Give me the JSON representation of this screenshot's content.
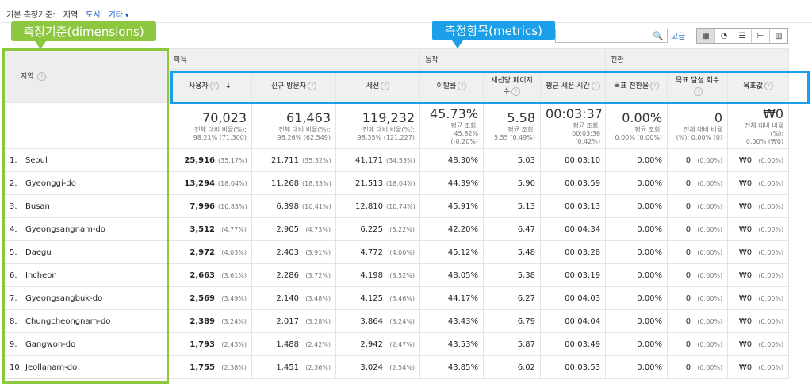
{
  "topbar": {
    "label": "기본 측정기준:",
    "current": "지역",
    "link1": "도시",
    "link2": "기타"
  },
  "callouts": {
    "dimensions": "측정기준(dimensions)",
    "metrics": "측정항목(metrics)"
  },
  "toolbar": {
    "advanced": "고급"
  },
  "groups": {
    "acquisition": "획득",
    "behavior": "동작",
    "conversion": "전환"
  },
  "dimension_header": "지역",
  "columns": [
    {
      "label": "사용자"
    },
    {
      "label": "신규 방문자"
    },
    {
      "label": "세션"
    },
    {
      "label": "이탈률"
    },
    {
      "label": "세션당 페이지 수"
    },
    {
      "label": "평균 세션 시간"
    },
    {
      "label": "목표 전환율"
    },
    {
      "label": "목표 달성 회수"
    },
    {
      "label": "목표값"
    }
  ],
  "totals": [
    {
      "big": "70,023",
      "sub1": "전체 대비 비율(%):",
      "sub2": "98.21% (71,300)"
    },
    {
      "big": "61,463",
      "sub1": "전체 대비 비율(%):",
      "sub2": "98.26% (62,549)"
    },
    {
      "big": "119,232",
      "sub1": "전체 대비 비율(%):",
      "sub2": "98.35% (121,227)"
    },
    {
      "big": "45.73%",
      "sub1": "평균 조회:",
      "sub2": "45.82% (-0.20%)"
    },
    {
      "big": "5.58",
      "sub1": "평균 조회:",
      "sub2": "5.55 (0.49%)"
    },
    {
      "big": "00:03:37",
      "sub1": "평균 조회:",
      "sub2": "00:03:36 (0.42%)"
    },
    {
      "big": "0.00%",
      "sub1": "평균 조회:",
      "sub2": "0.00% (0.00%)"
    },
    {
      "big": "0",
      "sub1": "전체 대비 비율",
      "sub2": "(%): 0.00% (0)"
    },
    {
      "big": "₩0",
      "sub1": "전체 대비 비율(%):",
      "sub2": "0.00% (₩0)"
    }
  ],
  "rows": [
    {
      "idx": "1.",
      "region": "Seoul",
      "users": "25,916",
      "users_pct": "(35.17%)",
      "new": "21,711",
      "new_pct": "(35.32%)",
      "sessions": "41,171",
      "sessions_pct": "(34.53%)",
      "bounce": "48.30%",
      "pps": "5.03",
      "dur": "00:03:10",
      "conv": "0.00%",
      "goals": "0",
      "goals_pct": "(0.00%)",
      "value": "₩0",
      "value_pct": "(0.00%)"
    },
    {
      "idx": "2.",
      "region": "Gyeonggi-do",
      "users": "13,294",
      "users_pct": "(18.04%)",
      "new": "11,268",
      "new_pct": "(18.33%)",
      "sessions": "21,513",
      "sessions_pct": "(18.04%)",
      "bounce": "44.39%",
      "pps": "5.90",
      "dur": "00:03:59",
      "conv": "0.00%",
      "goals": "0",
      "goals_pct": "(0.00%)",
      "value": "₩0",
      "value_pct": "(0.00%)"
    },
    {
      "idx": "3.",
      "region": "Busan",
      "users": "7,996",
      "users_pct": "(10.85%)",
      "new": "6,398",
      "new_pct": "(10.41%)",
      "sessions": "12,810",
      "sessions_pct": "(10.74%)",
      "bounce": "45.91%",
      "pps": "5.13",
      "dur": "00:03:13",
      "conv": "0.00%",
      "goals": "0",
      "goals_pct": "(0.00%)",
      "value": "₩0",
      "value_pct": "(0.00%)"
    },
    {
      "idx": "4.",
      "region": "Gyeongsangnam-do",
      "users": "3,512",
      "users_pct": "(4.77%)",
      "new": "2,905",
      "new_pct": "(4.73%)",
      "sessions": "6,225",
      "sessions_pct": "(5.22%)",
      "bounce": "42.20%",
      "pps": "6.47",
      "dur": "00:04:34",
      "conv": "0.00%",
      "goals": "0",
      "goals_pct": "(0.00%)",
      "value": "₩0",
      "value_pct": "(0.00%)"
    },
    {
      "idx": "5.",
      "region": "Daegu",
      "users": "2,972",
      "users_pct": "(4.03%)",
      "new": "2,403",
      "new_pct": "(3.91%)",
      "sessions": "4,772",
      "sessions_pct": "(4.00%)",
      "bounce": "45.12%",
      "pps": "5.48",
      "dur": "00:03:28",
      "conv": "0.00%",
      "goals": "0",
      "goals_pct": "(0.00%)",
      "value": "₩0",
      "value_pct": "(0.00%)"
    },
    {
      "idx": "6.",
      "region": "Incheon",
      "users": "2,663",
      "users_pct": "(3.61%)",
      "new": "2,286",
      "new_pct": "(3.72%)",
      "sessions": "4,198",
      "sessions_pct": "(3.52%)",
      "bounce": "48.05%",
      "pps": "5.38",
      "dur": "00:03:19",
      "conv": "0.00%",
      "goals": "0",
      "goals_pct": "(0.00%)",
      "value": "₩0",
      "value_pct": "(0.00%)"
    },
    {
      "idx": "7.",
      "region": "Gyeongsangbuk-do",
      "users": "2,569",
      "users_pct": "(3.49%)",
      "new": "2,140",
      "new_pct": "(3.48%)",
      "sessions": "4,125",
      "sessions_pct": "(3.46%)",
      "bounce": "44.17%",
      "pps": "6.27",
      "dur": "00:04:03",
      "conv": "0.00%",
      "goals": "0",
      "goals_pct": "(0.00%)",
      "value": "₩0",
      "value_pct": "(0.00%)"
    },
    {
      "idx": "8.",
      "region": "Chungcheongnam-do",
      "users": "2,389",
      "users_pct": "(3.24%)",
      "new": "2,017",
      "new_pct": "(3.28%)",
      "sessions": "3,864",
      "sessions_pct": "(3.24%)",
      "bounce": "43.43%",
      "pps": "6.79",
      "dur": "00:04:04",
      "conv": "0.00%",
      "goals": "0",
      "goals_pct": "(0.00%)",
      "value": "₩0",
      "value_pct": "(0.00%)"
    },
    {
      "idx": "9.",
      "region": "Gangwon-do",
      "users": "1,793",
      "users_pct": "(2.43%)",
      "new": "1,488",
      "new_pct": "(2.42%)",
      "sessions": "2,942",
      "sessions_pct": "(2.47%)",
      "bounce": "43.53%",
      "pps": "5.87",
      "dur": "00:03:49",
      "conv": "0.00%",
      "goals": "0",
      "goals_pct": "(0.00%)",
      "value": "₩0",
      "value_pct": "(0.00%)"
    },
    {
      "idx": "10.",
      "region": "Jeollanam-do",
      "users": "1,755",
      "users_pct": "(2.38%)",
      "new": "1,451",
      "new_pct": "(2.36%)",
      "sessions": "3,024",
      "sessions_pct": "(2.54%)",
      "bounce": "43.85%",
      "pps": "6.02",
      "dur": "00:03:53",
      "conv": "0.00%",
      "goals": "0",
      "goals_pct": "(0.00%)",
      "value": "₩0",
      "value_pct": "(0.00%)"
    }
  ],
  "colors": {
    "dimension_box": "#8dc63f",
    "metric_box": "#1a9fe8",
    "link": "#1a5dbf"
  }
}
